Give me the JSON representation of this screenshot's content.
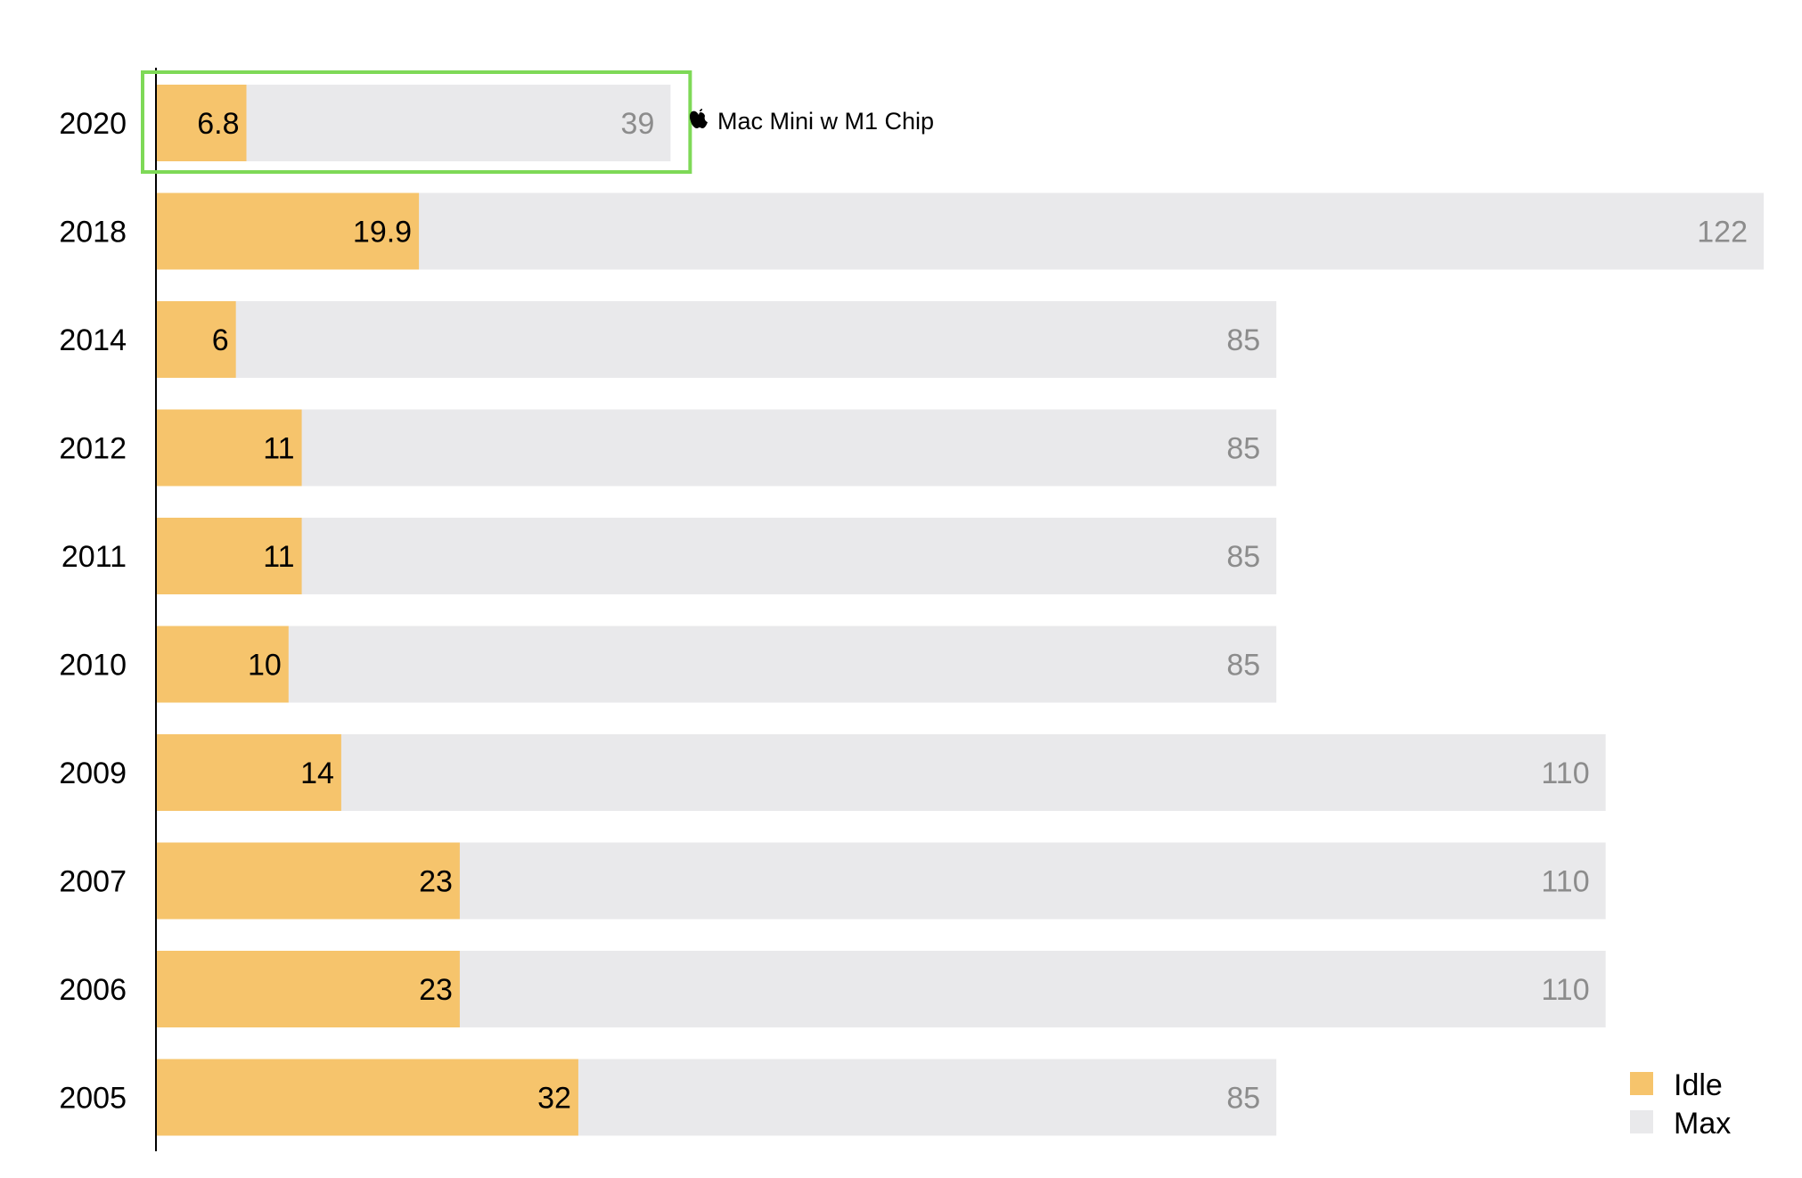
{
  "chart_data": {
    "type": "bar",
    "orientation": "horizontal",
    "stacking": "overlay",
    "categories": [
      "2020",
      "2018",
      "2014",
      "2012",
      "2011",
      "2010",
      "2009",
      "2007",
      "2006",
      "2005"
    ],
    "series": [
      {
        "name": "Idle",
        "color": "#f6c46c",
        "values": [
          6.8,
          19.9,
          6,
          11,
          11,
          10,
          14,
          23,
          23,
          32
        ]
      },
      {
        "name": "Max",
        "color": "#e9e9eb",
        "values": [
          39,
          122,
          85,
          85,
          85,
          85,
          110,
          110,
          110,
          85
        ]
      }
    ],
    "xlim": [
      0,
      122
    ],
    "grid": false,
    "legend": {
      "position": "bottom-right"
    },
    "highlight": {
      "category": "2020",
      "color": "#7ed957"
    },
    "annotation": {
      "category": "2020",
      "icon": "apple-logo-icon",
      "text": "Mac Mini w M1 Chip"
    }
  }
}
